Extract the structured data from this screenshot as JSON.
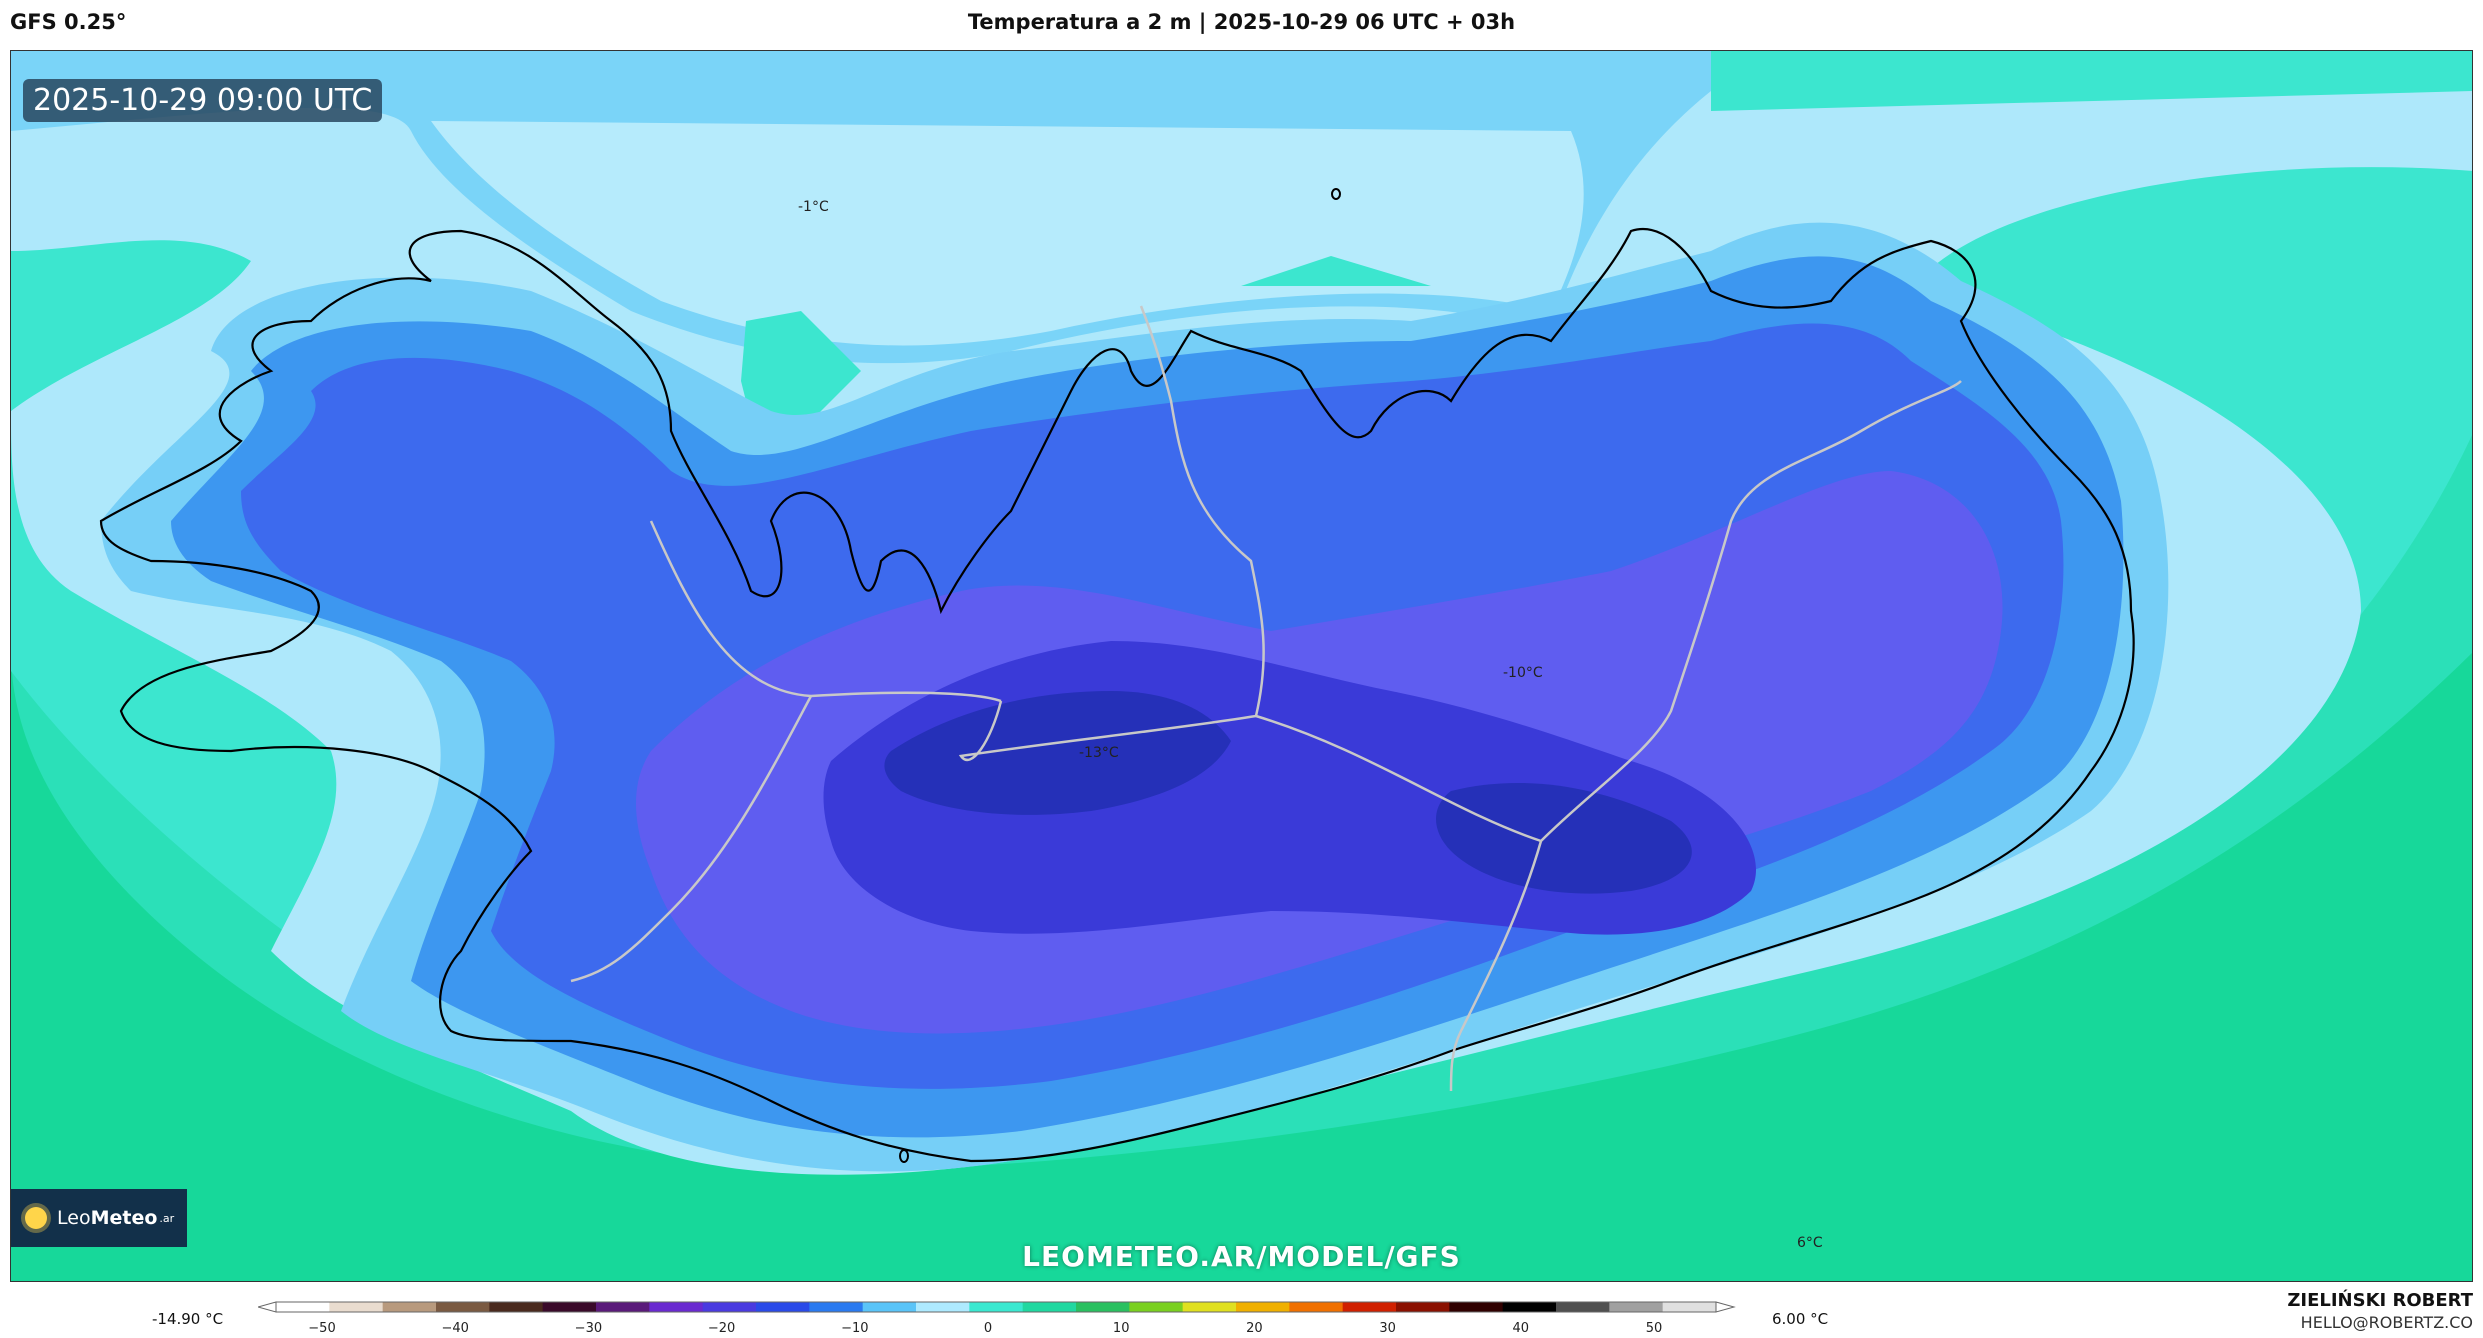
{
  "header": {
    "model": "GFS 0.25°",
    "title": "Temperatura a 2 m | 2025-10-29 06 UTC + 03h"
  },
  "map": {
    "valid_time": "2025-10-29 09:00 UTC",
    "labels": [
      {
        "text": "-1°C"
      },
      {
        "text": "-10°C"
      },
      {
        "text": "-13°C"
      },
      {
        "text": "6°C"
      }
    ],
    "watermark": "LEOMETEO.AR/MODEL/GFS",
    "logo": {
      "brand_light": "Leo",
      "brand_bold": "Meteo",
      "suffix": ".ar"
    }
  },
  "colorbar": {
    "min_label": "-14.90 °C",
    "max_label": "6.00 °C",
    "ticks": [
      "−50",
      "−40",
      "−30",
      "−20",
      "−10",
      "0",
      "10",
      "20",
      "30",
      "40",
      "50"
    ],
    "colors": [
      "#ffffff",
      "#e9dccf",
      "#b89a7e",
      "#7a5a42",
      "#4a2a1e",
      "#3a0a2a",
      "#5a1a7a",
      "#6a2ad0",
      "#4a3ae0",
      "#2a4ae8",
      "#2a7af0",
      "#5ac4f8",
      "#aeeaff",
      "#3ae8d0",
      "#20d8a0",
      "#2ac060",
      "#7ad020",
      "#e0e020",
      "#f0b000",
      "#f07000",
      "#d02000",
      "#8a1000",
      "#300000",
      "#000000",
      "#505050",
      "#a0a0a0",
      "#e0e0e0"
    ]
  },
  "credit": {
    "name": "ZIELIŃSKI ROBERT",
    "email": "HELLO@ROBERTZ.CO"
  },
  "palette": {
    "sea_far": "#17d89a",
    "sea": "#3ce6cf",
    "coast_light": "#aee8fb",
    "cold1": "#76cff7",
    "cold2": "#3d97f0",
    "cold3": "#3d6aee",
    "cold4": "#5f5df0",
    "cold5": "#3a3ad8",
    "cold6": "#2530b8"
  }
}
